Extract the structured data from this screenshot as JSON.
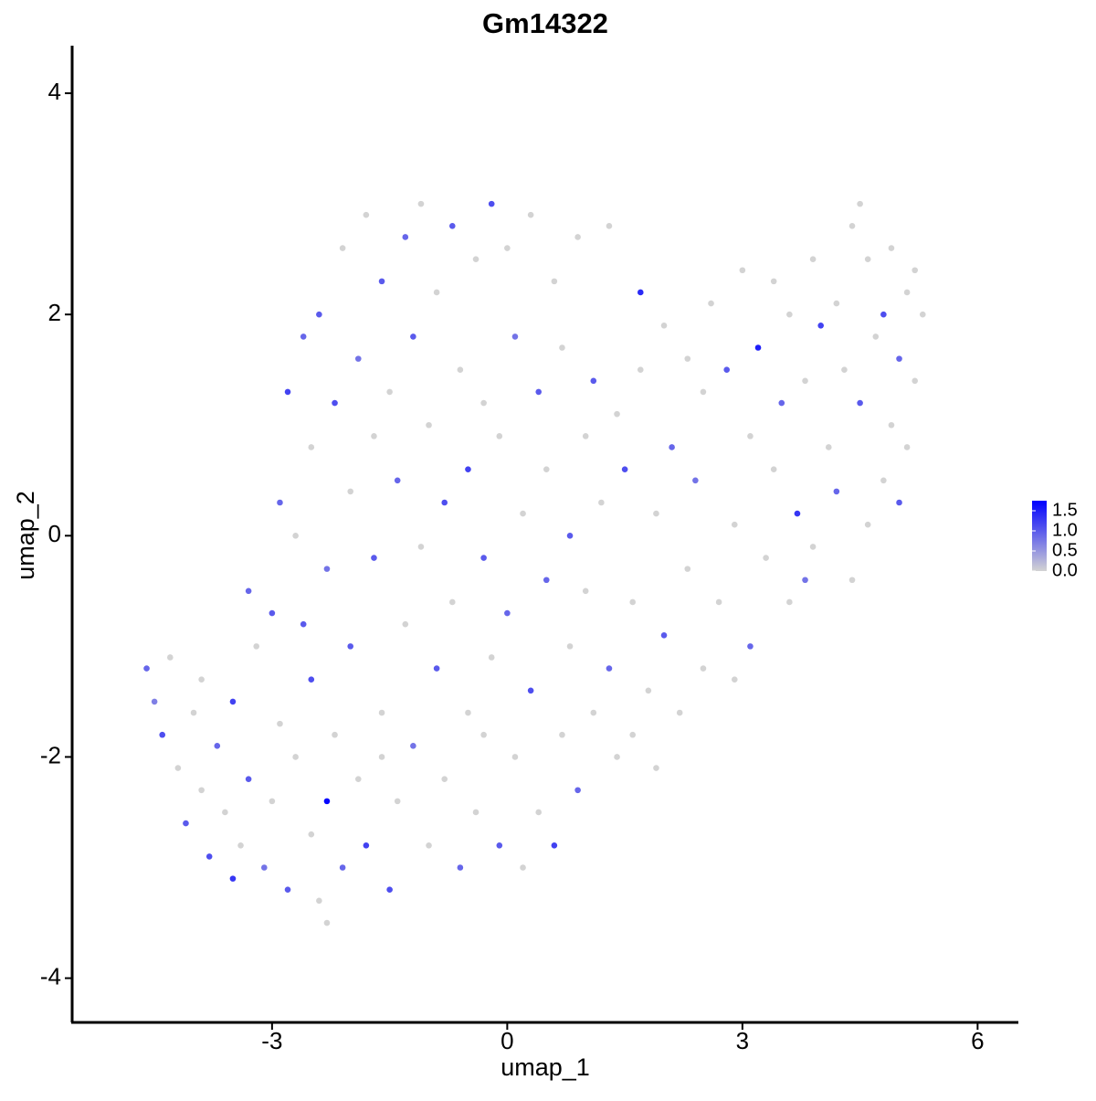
{
  "chart_data": {
    "type": "scatter",
    "title": "Gm14322",
    "x_label": "umap_1",
    "y_label": "umap_2",
    "xlim": [
      -5.55,
      6.52
    ],
    "ylim": [
      -4.4,
      4.43
    ],
    "xticks": [
      -3,
      0,
      3,
      6
    ],
    "yticks": [
      -4,
      -2,
      0,
      2,
      4
    ],
    "low_color": "#d3d3d3",
    "high_color": "#0000ff",
    "colorbar": {
      "lim": [
        0,
        1.75
      ],
      "ticks": [
        {
          "value": 0,
          "label": "0.0"
        },
        0.5,
        {
          "value": 1,
          "label": "1.0"
        },
        1.5
      ]
    },
    "x": [
      -4.6,
      -4.5,
      -4.4,
      -4.2,
      -4.1,
      -4.0,
      -3.9,
      -3.8,
      -3.7,
      -3.6,
      -3.5,
      -3.5,
      -3.4,
      -3.3,
      -3.3,
      -3.2,
      -3.1,
      -3.0,
      -3.0,
      -2.9,
      -2.9,
      -2.8,
      -2.8,
      -2.7,
      -2.7,
      -2.6,
      -2.6,
      -2.5,
      -2.5,
      -2.5,
      -2.4,
      -2.4,
      -2.3,
      -2.3,
      -2.2,
      -2.2,
      -2.1,
      -2.1,
      -2.0,
      -2.0,
      -1.9,
      -1.9,
      -1.8,
      -1.8,
      -1.7,
      -1.7,
      -1.6,
      -1.6,
      -1.5,
      -1.5,
      -1.4,
      -1.4,
      -1.3,
      -1.3,
      -1.2,
      -1.2,
      -1.1,
      -1.1,
      -1.0,
      -1.0,
      -0.9,
      -0.9,
      -0.8,
      -0.8,
      -0.7,
      -0.7,
      -0.6,
      -0.6,
      -0.5,
      -0.5,
      -0.4,
      -0.4,
      -0.3,
      -0.3,
      -0.2,
      -0.2,
      -0.1,
      -0.1,
      0.0,
      0.0,
      0.1,
      0.1,
      0.2,
      0.2,
      0.3,
      0.3,
      0.4,
      0.4,
      0.5,
      0.5,
      0.6,
      0.6,
      0.7,
      0.7,
      0.8,
      0.8,
      0.9,
      0.9,
      1.0,
      1.0,
      1.1,
      1.1,
      1.2,
      1.3,
      1.3,
      1.4,
      1.4,
      1.5,
      1.6,
      1.7,
      1.7,
      1.8,
      1.9,
      1.9,
      2.0,
      2.0,
      2.1,
      2.2,
      2.3,
      2.3,
      2.4,
      2.5,
      2.5,
      2.6,
      2.7,
      2.8,
      2.9,
      2.9,
      3.0,
      3.1,
      3.1,
      3.2,
      3.3,
      3.4,
      3.4,
      3.5,
      3.6,
      3.6,
      3.7,
      3.8,
      3.9,
      3.9,
      4.0,
      4.1,
      4.2,
      4.2,
      4.3,
      4.4,
      4.4,
      4.5,
      4.6,
      4.6,
      4.7,
      4.8,
      4.8,
      4.9,
      4.9,
      5.0,
      5.0,
      5.1,
      5.1,
      5.2,
      5.2,
      5.3,
      4.5,
      -3.9,
      -4.3,
      -2.3,
      -1.6,
      -0.3,
      1.6,
      3.8
    ],
    "values": [
      -1.2,
      -1.5,
      -1.8,
      -2.1,
      -2.6,
      -1.6,
      -2.3,
      -2.9,
      -1.9,
      -2.5,
      -3.1,
      -1.5,
      -2.8,
      -2.2,
      -0.5,
      -1.0,
      -3.0,
      -2.4,
      -0.7,
      0.3,
      -1.7,
      -3.2,
      1.3,
      -2.0,
      0.0,
      -0.8,
      1.8,
      -2.7,
      -1.3,
      0.8,
      -3.3,
      2.0,
      -2.4,
      -0.3,
      1.2,
      -1.8,
      -3.0,
      2.6,
      0.4,
      -1.0,
      -2.2,
      1.6,
      -2.8,
      2.9,
      0.9,
      -0.2,
      -1.6,
      2.3,
      -3.2,
      1.3,
      -2.4,
      0.5,
      -0.8,
      2.7,
      1.8,
      -1.9,
      -0.1,
      3.0,
      -2.8,
      1.0,
      -1.2,
      2.2,
      0.3,
      -2.2,
      2.8,
      -0.6,
      1.5,
      -3.0,
      -1.6,
      0.6,
      2.5,
      -2.5,
      -0.2,
      1.2,
      3.0,
      -1.1,
      -2.8,
      0.9,
      2.6,
      -0.7,
      -2.0,
      1.8,
      0.2,
      -3.0,
      2.9,
      -1.4,
      1.3,
      -2.5,
      0.6,
      -0.4,
      2.3,
      -2.8,
      -1.8,
      1.7,
      0.0,
      -1.0,
      2.7,
      -2.3,
      0.9,
      -0.5,
      1.4,
      -1.6,
      0.3,
      2.8,
      -1.2,
      1.1,
      -2.0,
      0.6,
      -0.6,
      2.2,
      1.5,
      -1.4,
      0.2,
      -2.1,
      1.9,
      -0.9,
      0.8,
      -1.6,
      1.6,
      -0.3,
      0.5,
      1.3,
      -1.2,
      2.1,
      -0.6,
      1.5,
      0.1,
      -1.3,
      2.4,
      0.9,
      -1.0,
      1.7,
      -0.2,
      2.3,
      0.6,
      1.2,
      -0.6,
      2.0,
      0.2,
      1.4,
      2.5,
      -0.1,
      1.9,
      0.8,
      2.1,
      0.4,
      1.5,
      2.8,
      -0.4,
      1.2,
      2.5,
      0.1,
      1.8,
      2.0,
      0.5,
      2.6,
      1.0,
      1.6,
      0.3,
      2.2,
      0.8,
      1.4,
      2.4,
      2.0,
      3.0,
      -1.3,
      -1.1,
      -3.5,
      -2.0,
      -1.8,
      -1.8,
      -0.4
    ],
    "expression": [
      0.9,
      0.7,
      1.1,
      0,
      1.0,
      0,
      0,
      1.1,
      0.9,
      0,
      1.3,
      1.2,
      0,
      1.0,
      0.9,
      0,
      0.8,
      0,
      1.0,
      0.9,
      0,
      1.0,
      1.2,
      0,
      0,
      1.0,
      0.9,
      0,
      1.1,
      0,
      0,
      1.0,
      1.7,
      0.8,
      1.1,
      0,
      0.9,
      0,
      0,
      1.0,
      0,
      0.8,
      1.2,
      0,
      0,
      1.0,
      0,
      1.0,
      1.1,
      0,
      0,
      0.9,
      0,
      0.9,
      1.0,
      0.8,
      0,
      0,
      0,
      0,
      1.0,
      0,
      1.1,
      0,
      1.0,
      0,
      0,
      0.9,
      0,
      1.2,
      0,
      0,
      1.0,
      0,
      1.1,
      0,
      1.0,
      0,
      0,
      0.9,
      0,
      0.8,
      0,
      0,
      0,
      1.1,
      1.0,
      0,
      0,
      0.9,
      0,
      1.2,
      0,
      0,
      1.0,
      0,
      0,
      0.9,
      0,
      0,
      1.0,
      0,
      0,
      0,
      0.9,
      0,
      0,
      1.1,
      0,
      1.4,
      0,
      0,
      0,
      0,
      0,
      1.0,
      0.9,
      0,
      0,
      0,
      0.8,
      0,
      0,
      0,
      0,
      1.0,
      0,
      0,
      0,
      0,
      0.9,
      1.5,
      0,
      0,
      0,
      0.9,
      0,
      0,
      1.3,
      0,
      0,
      0,
      1.2,
      0,
      0,
      0.9,
      0,
      0,
      0,
      1.0,
      0,
      0,
      0,
      1.1,
      0,
      0,
      0,
      0.9,
      1.0,
      0,
      0,
      0,
      0,
      0,
      0,
      0,
      0,
      0,
      0,
      0,
      0,
      0.8
    ]
  }
}
